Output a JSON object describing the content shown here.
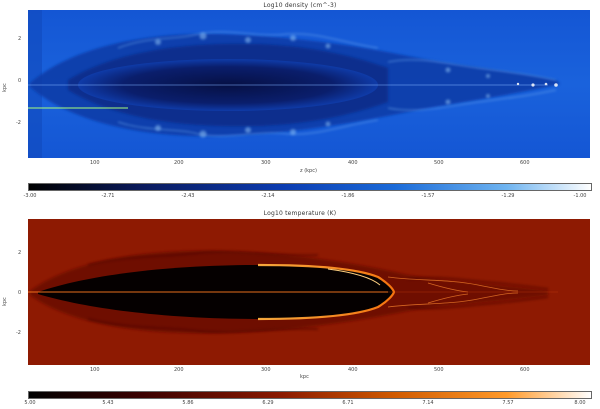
{
  "panels": [
    {
      "title": "Log10 density (cm^-3)",
      "y_axis_label": "kpc",
      "x_axis_label": "z (kpc)",
      "y_ticks": [
        "2",
        "0",
        "-2"
      ],
      "x_ticks": [
        "100",
        "200",
        "300",
        "400",
        "500",
        "600"
      ],
      "colorbar_ticks": [
        "-3.00",
        "-2.71",
        "-2.43",
        "-2.14",
        "-1.86",
        "-1.57",
        "-1.29",
        "-1.00"
      ],
      "colormap": [
        "#000000",
        "#0a1a5c",
        "#0b3bb0",
        "#1a6ad8",
        "#6fb4f0",
        "#ffffff"
      ]
    },
    {
      "title": "Log10 temperature (K)",
      "y_axis_label": "kpc",
      "x_axis_label": "kpc",
      "y_ticks": [
        "2",
        "0",
        "-2"
      ],
      "x_ticks": [
        "100",
        "200",
        "300",
        "400",
        "500",
        "600"
      ],
      "colorbar_ticks": [
        "5.00",
        "5.43",
        "5.86",
        "6.29",
        "6.71",
        "7.14",
        "7.57",
        "8.00"
      ],
      "colormap": [
        "#000000",
        "#3a0000",
        "#8b1a00",
        "#d05a00",
        "#ff9a2a",
        "#ffffff"
      ]
    }
  ]
}
